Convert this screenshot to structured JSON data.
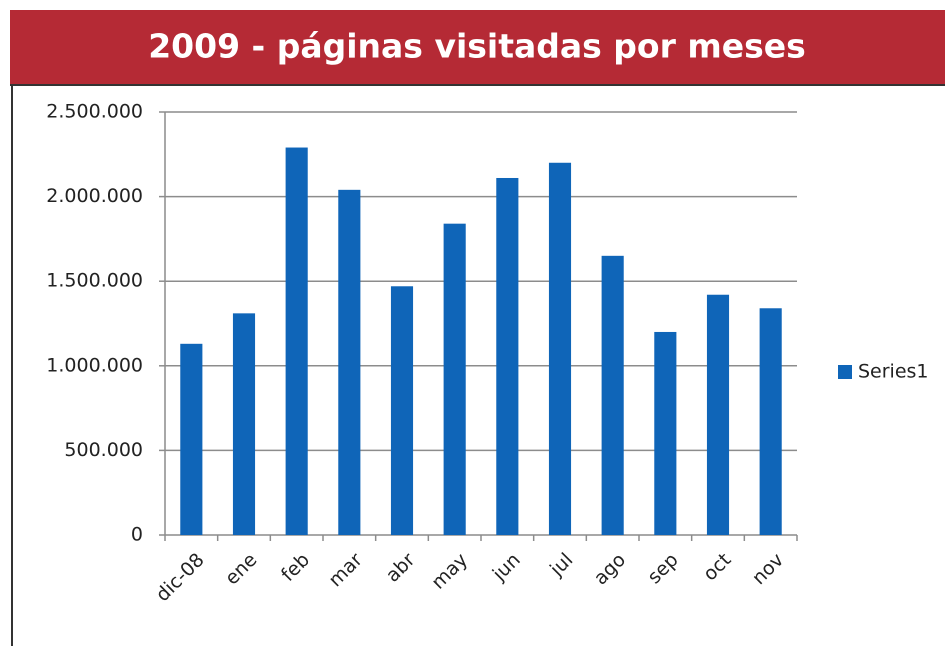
{
  "chart_data": {
    "type": "bar",
    "title": "2009 - páginas visitadas por meses",
    "categories": [
      "dic-08",
      "ene",
      "feb",
      "mar",
      "abr",
      "may",
      "jun",
      "jul",
      "ago",
      "sep",
      "oct",
      "nov"
    ],
    "series": [
      {
        "name": "Series1",
        "color": "#0f65b8",
        "values": [
          1130000,
          1310000,
          2290000,
          2040000,
          1470000,
          1840000,
          2110000,
          2200000,
          1650000,
          1200000,
          1420000,
          1340000
        ]
      }
    ],
    "ylim": [
      0,
      2500000
    ],
    "yticks": [
      0,
      {
        "value": 500000,
        "label": "500.000"
      },
      {
        "value": 1000000,
        "label": "1.000.000"
      },
      {
        "value": 1500000,
        "label": "1.500.000"
      },
      {
        "value": 2000000,
        "label": "2.000.000"
      },
      {
        "value": 2500000,
        "label": "2.500.000"
      }
    ],
    "grid": true,
    "legend": "right"
  }
}
